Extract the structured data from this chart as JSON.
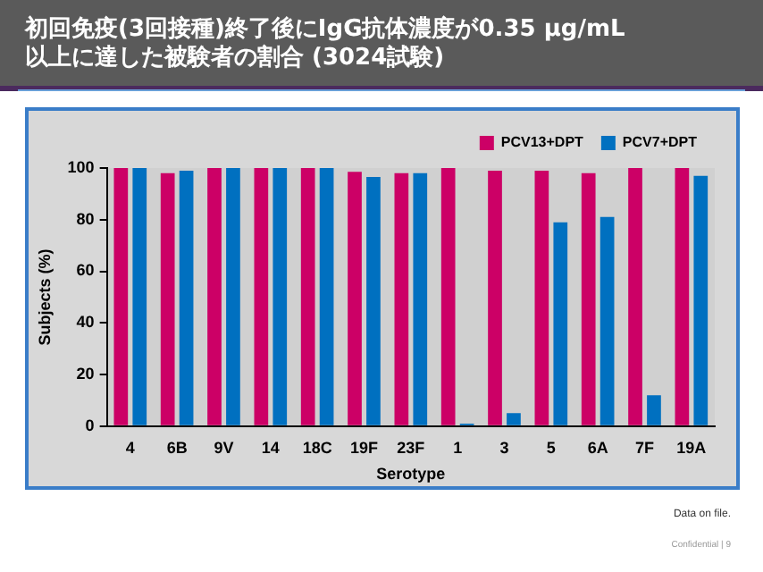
{
  "chart_data": {
    "type": "bar",
    "title": "初回免疫(3回接種)終了後にIgG抗体濃度が0.35 μg/mL\n以上に達した被験者の割合 (3024試験)",
    "xlabel": "Serotype",
    "ylabel": "Subjects (%)",
    "categories": [
      "4",
      "6B",
      "9V",
      "14",
      "18C",
      "19F",
      "23F",
      "1",
      "3",
      "5",
      "6A",
      "7F",
      "19A"
    ],
    "series": [
      {
        "name": "PCV13+DPT",
        "color": "#cc0066",
        "values": [
          100,
          98,
          100,
          100,
          100,
          98.5,
          98,
          100,
          99,
          99,
          98,
          100,
          100
        ]
      },
      {
        "name": "PCV7+DPT",
        "color": "#0070c0",
        "values": [
          100,
          99,
          100,
          100,
          100,
          96.5,
          98,
          1,
          5,
          79,
          81,
          12,
          97
        ]
      }
    ],
    "ylim": [
      0,
      100
    ],
    "yticks": [
      0,
      20,
      40,
      60,
      80,
      100
    ],
    "grid": false,
    "legend": "top right",
    "annotations": [
      "Data on file.",
      "Confidential | 9"
    ]
  }
}
